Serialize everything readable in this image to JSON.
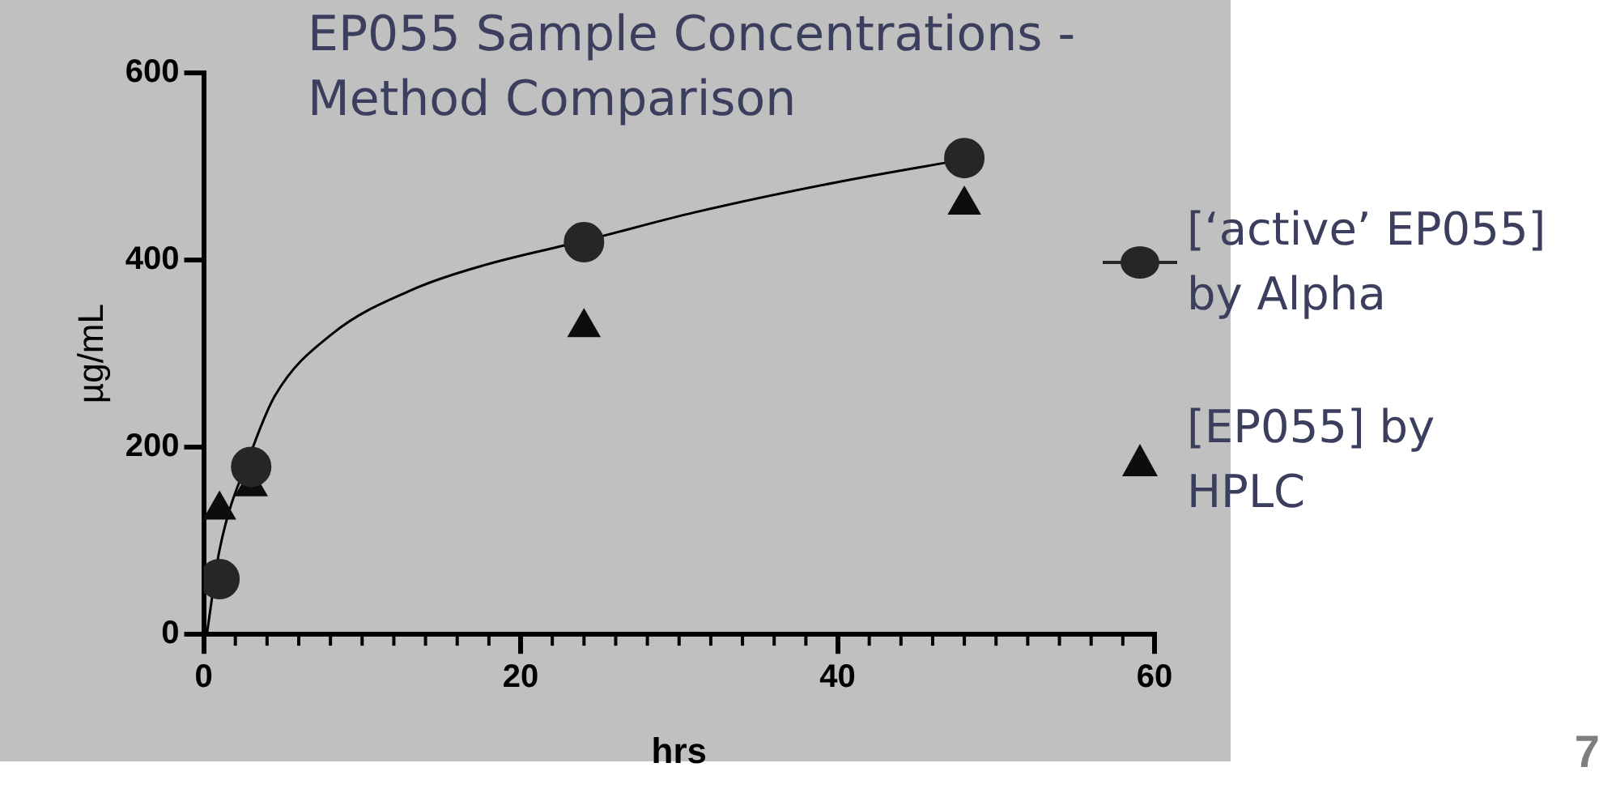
{
  "chart_data": {
    "type": "scatter",
    "title": "EP055 Sample Concentrations - Method Comparison",
    "xlabel": "hrs",
    "ylabel": "µg/mL",
    "x": [
      1,
      3,
      24,
      48
    ],
    "series": [
      {
        "name": "[‘active’ EP055] by Alpha",
        "color": "#262626",
        "values": [
          59,
          179,
          419,
          509
        ],
        "marker": "circle"
      },
      {
        "name": "[EP055] by HPLC",
        "color": "#0d0d0d",
        "values": [
          133,
          158,
          328,
          459
        ],
        "marker": "triangle"
      },
      {
        "type": "line",
        "color": "#000000",
        "x": [
          0.2,
          1,
          3,
          4.5,
          8.1,
          13.4,
          17.8,
          24.1,
          31,
          39.9,
          48.5
        ],
        "values": [
          0,
          90,
          195,
          255,
          321,
          370,
          395,
          421,
          451,
          483,
          509
        ],
        "marker": "none"
      }
    ],
    "xlim": [
      0,
      60
    ],
    "xticks": [
      0,
      20,
      40,
      60
    ],
    "ylim": [
      0,
      600
    ],
    "yticks": [
      0,
      200,
      400,
      600
    ],
    "grid": false,
    "legend": "right",
    "annotations": [
      "7"
    ]
  }
}
